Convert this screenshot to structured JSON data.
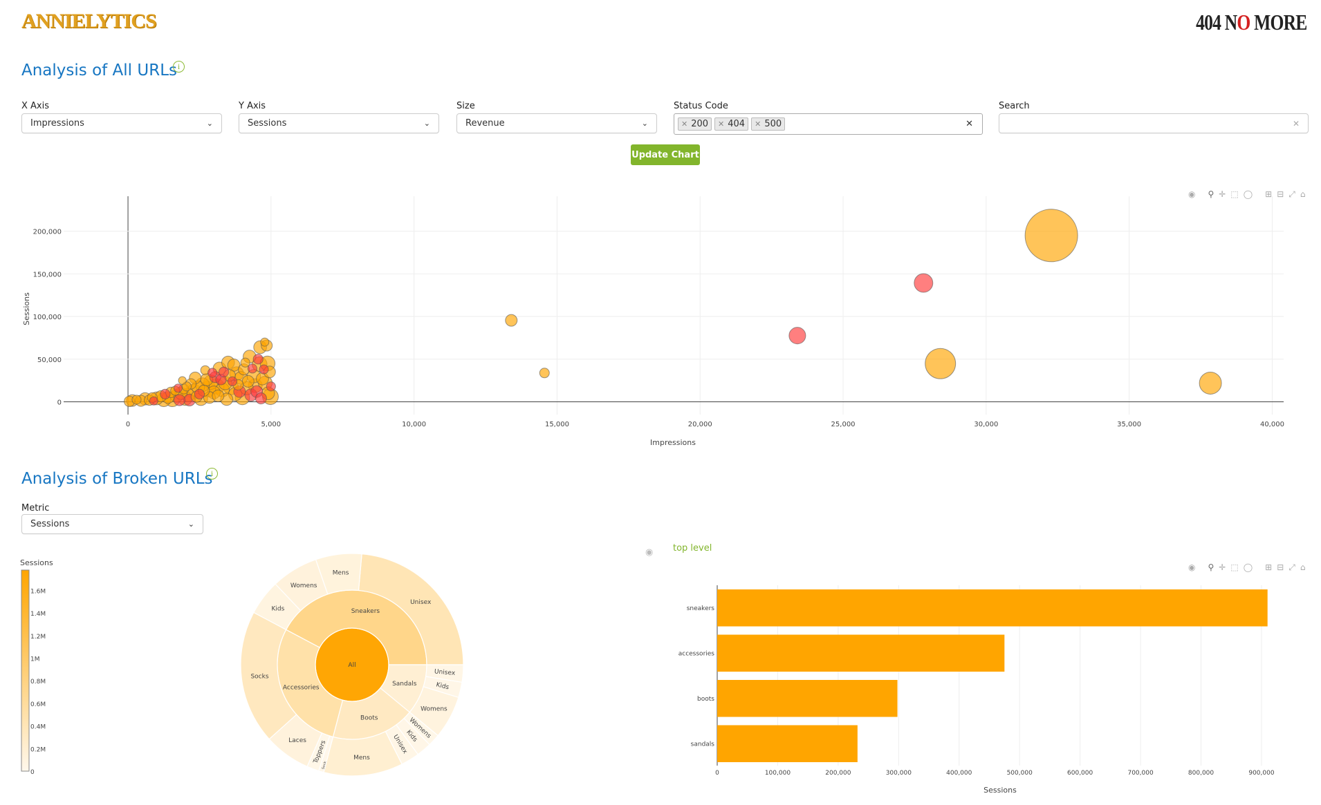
{
  "header": {
    "logo_left": "ANNIELYTICS",
    "logo_right_a": "404 N",
    "logo_right_o": "O",
    "logo_right_b": " MORE"
  },
  "section1": {
    "title": "Analysis of All URLs",
    "info_icon": "info-circle-icon",
    "filters": {
      "x_axis": {
        "label": "X Axis",
        "value": "Impressions"
      },
      "y_axis": {
        "label": "Y Axis",
        "value": "Sessions"
      },
      "size": {
        "label": "Size",
        "value": "Revenue"
      },
      "status_code": {
        "label": "Status Code",
        "values": [
          "200",
          "404",
          "500"
        ]
      },
      "search": {
        "label": "Search",
        "value": ""
      }
    },
    "update_button": "Update Chart"
  },
  "section2": {
    "title": "Analysis of Broken URLs",
    "metric": {
      "label": "Metric",
      "value": "Sessions"
    },
    "breadcrumb": "top level"
  },
  "modebar_icons": [
    "camera-icon",
    "zoom-icon",
    "pan-icon",
    "box-select-icon",
    "lasso-icon",
    "zoom-in-icon",
    "zoom-out-icon",
    "autoscale-icon",
    "home-icon"
  ],
  "colors": {
    "status_200": "#FFA500",
    "status_error": "#FF3B3B",
    "title": "#1776c2",
    "accent": "#82b52c"
  },
  "chart_data": [
    {
      "type": "scatter",
      "xlabel": "Impressions",
      "ylabel": "Sessions",
      "xlim": [
        -2250,
        40400
      ],
      "ylim": [
        -15000,
        241000
      ],
      "xticks": [
        0,
        5000,
        10000,
        15000,
        20000,
        25000,
        30000,
        35000,
        40000
      ],
      "xtick_labels": [
        "0",
        "5,000",
        "10,000",
        "15,000",
        "20,000",
        "25,000",
        "30,000",
        "35,000",
        "40,000"
      ],
      "yticks": [
        0,
        50000,
        100000,
        150000,
        200000
      ],
      "ytick_labels": [
        "0",
        "50,000",
        "100,000",
        "150,000",
        "200,000"
      ],
      "size_field": "Revenue",
      "grid": true,
      "points_fields": [
        "impressions",
        "sessions",
        "revenue",
        "status"
      ],
      "points": [
        [
          13400,
          95500,
          5000,
          "200"
        ],
        [
          14560,
          33800,
          3400,
          "200"
        ],
        [
          23400,
          77600,
          10000,
          "404"
        ],
        [
          27810,
          139300,
          12600,
          "404"
        ],
        [
          32280,
          195000,
          100000,
          "200"
        ],
        [
          28400,
          44800,
          33500,
          "200"
        ],
        [
          37840,
          21900,
          17700,
          "200"
        ],
        [
          50,
          500,
          4000,
          "200"
        ],
        [
          150,
          1500,
          5000,
          "200"
        ],
        [
          300,
          2500,
          3000,
          "200"
        ],
        [
          450,
          1200,
          4500,
          "200"
        ],
        [
          600,
          3500,
          5500,
          "200"
        ],
        [
          750,
          2000,
          4000,
          "200"
        ],
        [
          850,
          5000,
          3500,
          "200"
        ],
        [
          900,
          1000,
          2500,
          "404"
        ],
        [
          1000,
          4000,
          6000,
          "200"
        ],
        [
          1150,
          6500,
          4500,
          "200"
        ],
        [
          1250,
          2500,
          7000,
          "200"
        ],
        [
          1300,
          9000,
          3500,
          "404"
        ],
        [
          1400,
          5000,
          5000,
          "200"
        ],
        [
          1500,
          11000,
          4000,
          "200"
        ],
        [
          1550,
          3000,
          8000,
          "200"
        ],
        [
          1650,
          13000,
          3000,
          "200"
        ],
        [
          1700,
          7000,
          6000,
          "200"
        ],
        [
          1750,
          16000,
          2500,
          "404"
        ],
        [
          1800,
          2000,
          4500,
          "404"
        ],
        [
          1850,
          10000,
          5500,
          "200"
        ],
        [
          1900,
          25000,
          2200,
          "200"
        ],
        [
          1950,
          15000,
          3500,
          "200"
        ],
        [
          2000,
          4000,
          7000,
          "200"
        ],
        [
          2050,
          18000,
          3000,
          "200"
        ],
        [
          2100,
          8000,
          6500,
          "200"
        ],
        [
          2150,
          2000,
          5000,
          "404"
        ],
        [
          2200,
          21000,
          4000,
          "200"
        ],
        [
          2300,
          12000,
          8000,
          "200"
        ],
        [
          2350,
          28000,
          5000,
          "200"
        ],
        [
          2400,
          6000,
          4500,
          "200"
        ],
        [
          2450,
          17000,
          6000,
          "200"
        ],
        [
          2500,
          9000,
          3500,
          "404"
        ],
        [
          2550,
          3500,
          6500,
          "200"
        ],
        [
          2600,
          20000,
          7000,
          "200"
        ],
        [
          2650,
          13000,
          4500,
          "200"
        ],
        [
          2700,
          37000,
          3000,
          "200"
        ],
        [
          2750,
          26000,
          5500,
          "200"
        ],
        [
          2800,
          15000,
          9000,
          "200"
        ],
        [
          2850,
          5000,
          5000,
          "200"
        ],
        [
          2900,
          23000,
          7500,
          "200"
        ],
        [
          2950,
          34000,
          3000,
          "404"
        ],
        [
          3000,
          11000,
          6000,
          "200"
        ],
        [
          3050,
          29000,
          4500,
          "404"
        ],
        [
          3100,
          18000,
          8500,
          "200"
        ],
        [
          3150,
          7000,
          5000,
          "200"
        ],
        [
          3200,
          39000,
          6000,
          "200"
        ],
        [
          3250,
          26000,
          4000,
          "404"
        ],
        [
          3300,
          14000,
          7000,
          "200"
        ],
        [
          3350,
          35000,
          3500,
          "404"
        ],
        [
          3400,
          22000,
          6500,
          "200"
        ],
        [
          3450,
          3000,
          5500,
          "200"
        ],
        [
          3500,
          46000,
          6000,
          "200"
        ],
        [
          3550,
          31000,
          5000,
          "200"
        ],
        [
          3600,
          17000,
          8000,
          "200"
        ],
        [
          3650,
          24000,
          3000,
          "404"
        ],
        [
          3700,
          43000,
          5500,
          "200"
        ],
        [
          3750,
          9000,
          6500,
          "200"
        ],
        [
          3800,
          33000,
          7000,
          "200"
        ],
        [
          3850,
          20000,
          4000,
          "200"
        ],
        [
          3900,
          12000,
          5000,
          "404"
        ],
        [
          3950,
          28000,
          6000,
          "200"
        ],
        [
          4000,
          5000,
          7500,
          "200"
        ],
        [
          4050,
          38000,
          4500,
          "200"
        ],
        [
          4100,
          46000,
          3000,
          "200"
        ],
        [
          4150,
          16000,
          6500,
          "200"
        ],
        [
          4200,
          24000,
          5000,
          "200"
        ],
        [
          4250,
          53000,
          6000,
          "200"
        ],
        [
          4300,
          8000,
          5500,
          "404"
        ],
        [
          4350,
          39000,
          3000,
          "404"
        ],
        [
          4400,
          30000,
          6500,
          "200"
        ],
        [
          4450,
          19000,
          7000,
          "200"
        ],
        [
          4500,
          12000,
          5000,
          "404"
        ],
        [
          4550,
          50000,
          3500,
          "404"
        ],
        [
          4600,
          44000,
          8000,
          "200"
        ],
        [
          4620,
          64000,
          6000,
          "200"
        ],
        [
          4650,
          4000,
          4500,
          "404"
        ],
        [
          4700,
          27000,
          5500,
          "200"
        ],
        [
          4750,
          38000,
          3000,
          "404"
        ],
        [
          4780,
          70000,
          2500,
          "200"
        ],
        [
          4800,
          22000,
          7000,
          "200"
        ],
        [
          4850,
          66000,
          4500,
          "200"
        ],
        [
          4880,
          45000,
          8000,
          "200"
        ],
        [
          4900,
          10000,
          6000,
          "200"
        ],
        [
          4950,
          35000,
          5000,
          "200"
        ],
        [
          4980,
          6000,
          9000,
          "200"
        ],
        [
          5000,
          18000,
          3000,
          "404"
        ]
      ]
    },
    {
      "type": "sunburst",
      "colorbar": {
        "title": "Sessions",
        "max": 1780000,
        "ticks": [
          "0",
          "0.2M",
          "0.4M",
          "0.6M",
          "0.8M",
          "1M",
          "1.2M",
          "1.4M",
          "1.6M"
        ],
        "tick_values": [
          0,
          200000,
          400000,
          600000,
          800000,
          1000000,
          1200000,
          1400000,
          1600000
        ]
      },
      "colorscale": [
        "#FFF8EC",
        "#FFA500"
      ],
      "root": {
        "label": "All",
        "value": 1750000
      },
      "children": [
        {
          "label": "Sneakers",
          "value": 739000,
          "children": [
            {
              "label": "Unisex",
              "value": 413000
            },
            {
              "label": "Mens",
              "value": 117000
            },
            {
              "label": "Womens",
              "value": 119000
            },
            {
              "label": "Kids",
              "value": 90000
            }
          ]
        },
        {
          "label": "Accessories",
          "value": 502000,
          "children": [
            {
              "label": "Socks",
              "value": 340000
            },
            {
              "label": "Laces",
              "value": 118000
            },
            {
              "label": "Toppers",
              "value": 31000
            },
            {
              "label": "Sock",
              "value": 13000
            }
          ]
        },
        {
          "label": "Boots",
          "value": 317000,
          "children": [
            {
              "label": "Mens",
              "value": 201000
            },
            {
              "label": "Unisex",
              "value": 47000
            },
            {
              "label": "Kids",
              "value": 38000
            },
            {
              "label": "Womens",
              "value": 31000
            }
          ]
        },
        {
          "label": "Sandals",
          "value": 192000,
          "children": [
            {
              "label": "Womens",
              "value": 109000
            },
            {
              "label": "Kids",
              "value": 39000
            },
            {
              "label": "Unisex",
              "value": 44000
            }
          ]
        }
      ]
    },
    {
      "type": "bar",
      "orientation": "horizontal",
      "categories": [
        "sneakers",
        "accessories",
        "boots",
        "sandals"
      ],
      "values": [
        910000,
        475000,
        298000,
        232000
      ],
      "xlabel": "Sessions",
      "xlim": [
        0,
        1000000
      ],
      "xticks": [
        0,
        100000,
        200000,
        300000,
        400000,
        500000,
        600000,
        700000,
        800000,
        900000
      ],
      "xtick_labels": [
        "0",
        "100,000",
        "200,000",
        "300,000",
        "400,000",
        "500,000",
        "600,000",
        "700,000",
        "800,000",
        "900,000"
      ],
      "color": "#FFA500",
      "grid": true
    }
  ]
}
